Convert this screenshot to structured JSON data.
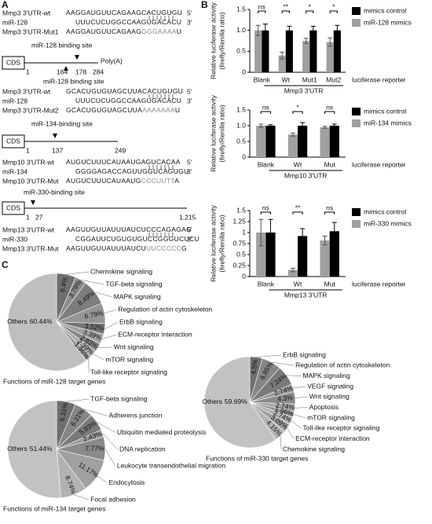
{
  "panel_labels": [
    "A",
    "B",
    "C"
  ],
  "sequences": [
    [
      {
        "name": "Mmp3 3'UTR-wt",
        "seq": "AAGGAUGUUCAGAAGCACUGUGU",
        "end": "5'"
      },
      {
        "name": "miR-128",
        "seq": "UUUCUCUGGCCAAGUGACACU",
        "end": "3'"
      },
      {
        "name": "Mmp3 3'UTR-Mut1",
        "seq": "AAGGAUGUUCAGAAG",
        "mut": "GGGAAAA",
        "tail": "U"
      }
    ],
    [
      {
        "name": "Mmp3 3'UTR-wt",
        "seq": "GCACUGUGUAGCUUACACUGUGU",
        "end": "5'"
      },
      {
        "name": "miR-128",
        "seq": "UUUCUCUGGCCAAGUGACACU",
        "end": "3'"
      },
      {
        "name": "Mmp3 3'UTR-Mut2",
        "seq": "GCACUGUGUAGCUUA",
        "mut": "AAAAAAA",
        "tail": "U"
      }
    ],
    [
      {
        "name": "Mmp10 3'UTR-wt",
        "seq": "AUGUCUUUCAUAAUGAGUCACAA",
        "end": "5'"
      },
      {
        "name": "miR-134",
        "seq": "GGGGAGACCAGUUGGUCAGUGU",
        "end": "3'"
      },
      {
        "name": "Mmp10 3'UTR-Mut",
        "seq": "AUGUCUUUCAUAAUG",
        "mut": "CCCUUTT",
        "tail": "A"
      }
    ],
    [
      {
        "name": "Mmp13 3'UTR-wt",
        "seq": "AAGUUGUUAUUUAUCUCCCAGAGAG",
        "end": "5'"
      },
      {
        "name": "miR-330",
        "seq": "CGGAUUCUGUGUGUCCGGGUCUCU",
        "end": "3'"
      },
      {
        "name": "Mmp13 3'UTR-Mut",
        "seq": "AAGUUGUUAUUUAUCU",
        "mut": "UUCCCCC",
        "tail": "G"
      }
    ]
  ],
  "diagrams": [
    {
      "cds": "CDS",
      "sites": [
        "miR-128 binding site",
        "miR-128 binding site"
      ],
      "positions": [
        1,
        164,
        178,
        284
      ],
      "tail": "Poly(A)"
    },
    {
      "cds": "CDS",
      "sites": [
        "miR-134-binding site"
      ],
      "positions": [
        1,
        137,
        249
      ]
    },
    {
      "cds": "CDS",
      "sites": [
        "miR-330-binding site"
      ],
      "positions": [
        1,
        27,
        "1,215"
      ]
    }
  ],
  "chart_data": [
    {
      "type": "bar",
      "y_label": [
        "Relative luciferase activity",
        "(firefly/Renilla ratio)"
      ],
      "categories": [
        "Blank",
        "Wt",
        "Mut1",
        "Mut2"
      ],
      "group_label": "Mmp3 3'UTR",
      "x_note": "luciferase reporter",
      "series": [
        {
          "name": "mimics control",
          "color": "#000000",
          "values": [
            1,
            1,
            1,
            1
          ],
          "errors": [
            0.15,
            0.1,
            0.1,
            0.12
          ]
        },
        {
          "name": "miR-128 mimics",
          "color": "#a0a0a0",
          "values": [
            1,
            0.4,
            0.75,
            0.72
          ],
          "errors": [
            0.12,
            0.08,
            0.06,
            0.1
          ]
        }
      ],
      "significance": [
        "ns",
        "**",
        "*",
        "*"
      ],
      "ylim": [
        0,
        1.5
      ],
      "yticks": [
        0,
        0.5,
        {
          "value": 1,
          "label": "1.0"
        },
        {
          "value": 1.5,
          "label": "1.5"
        }
      ]
    },
    {
      "type": "bar",
      "y_label": [
        "Relative luciferase activity",
        "(firefly/Renilla ratio)"
      ],
      "categories": [
        "Blank",
        "Wt",
        "Mut"
      ],
      "group_label": "Mmp10 3'UTR",
      "x_note": "luciferase reporter",
      "series": [
        {
          "name": "mimics control",
          "color": "#000000",
          "values": [
            1,
            1,
            1
          ],
          "errors": [
            0.03,
            0.1,
            0.05
          ]
        },
        {
          "name": "miR-134 mimics",
          "color": "#a0a0a0",
          "values": [
            1,
            0.72,
            0.95
          ],
          "errors": [
            0.05,
            0.05,
            0.03
          ]
        }
      ],
      "significance": [
        "ns",
        "*",
        "ns"
      ],
      "ylim": [
        0,
        1.5
      ],
      "yticks": [
        0,
        0.5,
        {
          "value": 1,
          "label": "1.0"
        },
        {
          "value": 1.5,
          "label": "1.5"
        }
      ]
    },
    {
      "type": "bar",
      "y_label": [
        "Relative luciferase activity",
        "(firefly/Renilla ratio)"
      ],
      "categories": [
        "Blank",
        "Wt",
        "Mut"
      ],
      "group_label": "Mmp13 3'UTR",
      "x_note": "luciferase reporter",
      "series": [
        {
          "name": "mimics control",
          "color": "#000000",
          "values": [
            1,
            0.92,
            1.03
          ],
          "errors": [
            0.3,
            0.17,
            0.2
          ]
        },
        {
          "name": "miR-330 mimics",
          "color": "#a0a0a0",
          "values": [
            1,
            0.15,
            0.82
          ],
          "errors": [
            0.3,
            0.04,
            0.1
          ]
        }
      ],
      "significance": [
        "ns",
        "**",
        "ns"
      ],
      "ylim": [
        0,
        1.5
      ],
      "yticks": [
        0,
        0.25,
        0.5,
        0.75,
        1,
        1.25,
        1.5
      ]
    },
    {
      "type": "pie",
      "title": "Functions of miR-128 target genes",
      "categories": [
        "Chemokine signaling",
        "TGF-beta signaling",
        "MAPK signaling",
        "Regulation of actin cytoskeleton",
        "ErbB signaling",
        "ECM-receptor interaction",
        "Wnt signaling",
        "mTOR signaling",
        "Toll-like receptor signaling",
        "Others"
      ],
      "values": [
        6.4,
        3.79,
        8.49,
        6.79,
        3.52,
        3.39,
        2.83,
        2.39,
        1.96,
        60.44
      ],
      "value_labels": [
        "6.4%",
        "3.79%",
        "8.49%",
        "6.79%",
        "3.52%",
        "3.39%",
        "2.83%",
        "2.39%",
        "1.96%",
        "60.44%"
      ],
      "colors": [
        "#6f6f6f",
        "#8c8c8c",
        "#7d7d7d",
        "#959595",
        "#747474",
        "#a3a3a3",
        "#868686",
        "#ababab",
        "#999999",
        "#bfbfbf"
      ]
    },
    {
      "type": "pie",
      "title": "Functions of miR-134 target genes",
      "categories": [
        "TGF-beta signaling",
        "Adherens junction",
        "Ubiquitin mediated proteolysis",
        "DNA replication",
        "Leukocyte transendothelial migration",
        "Endocytosis",
        "Focal adhesion",
        "Others"
      ],
      "values": [
        6.31,
        6.31,
        5.83,
        2.43,
        7.77,
        11.17,
        8.74,
        51.44
      ],
      "value_labels": [
        "6.31%",
        "6.31%",
        "5.83%",
        "2.43%",
        "7.77%",
        "11.17%",
        "8.74%",
        "51.44%"
      ],
      "colors": [
        "#6f6f6f",
        "#858585",
        "#7a7a7a",
        "#9a9a9a",
        "#8a8a8a",
        "#a0a0a0",
        "#b2b2b2",
        "#c2c2c2"
      ]
    },
    {
      "type": "pie",
      "title": "Functions of miR-330 target genes",
      "categories": [
        "ErbB signaling",
        "Regulation of actin cytoskeleton",
        "MAPK signaling",
        "VEGF signaling",
        "Wnt signaling",
        "Apoptosis",
        "mTOR signaling",
        "Toll-like receptor signaling",
        "ECM-receptor interaction",
        "Chemokine signaling",
        "Others"
      ],
      "values": [
        4.5,
        6.85,
        7.24,
        2.74,
        4.3,
        2.74,
        1.96,
        2.74,
        3.09,
        4.15,
        59.69
      ],
      "value_labels": [
        "4.5%",
        "6.85%",
        "7.24%",
        "2.74%",
        "4.3%",
        "2.74%",
        "1.96%",
        "2.74%",
        "3.09%",
        "4.15%",
        "59.69%"
      ],
      "colors": [
        "#6f6f6f",
        "#858585",
        "#7a7a7a",
        "#9a9a9a",
        "#8a8a8a",
        "#a5a5a5",
        "#939393",
        "#b0b0b0",
        "#9f9f9f",
        "#b5b5b5",
        "#c2c2c2"
      ]
    }
  ]
}
